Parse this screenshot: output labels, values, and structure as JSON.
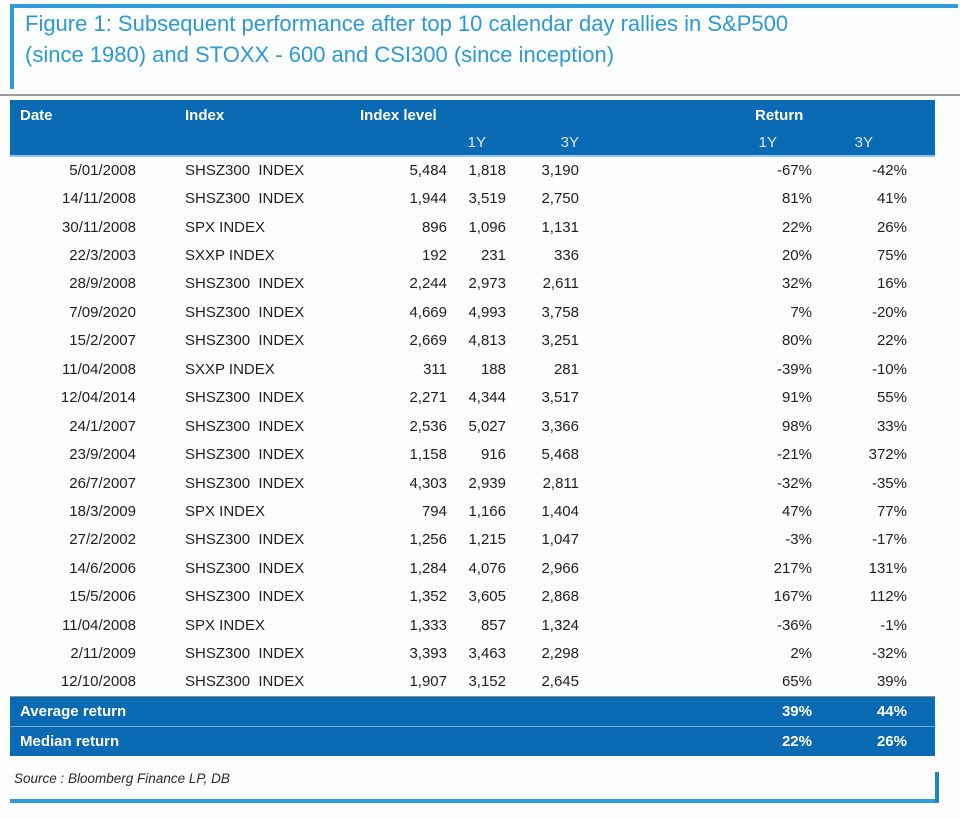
{
  "figure": {
    "title": "Figure 1: Subsequent performance after top 10 calendar day rallies in S&P500 (since 1980) and STOXX - 600 and CSI300 (since inception)"
  },
  "table": {
    "headers": {
      "date": "Date",
      "index": "Index",
      "index_level": "Index level",
      "return": "Return"
    },
    "subheaders": {
      "level_1y": "1Y",
      "level_3y": "3Y",
      "return_1y": "1Y",
      "return_3y": "3Y"
    },
    "rows": [
      {
        "date": "5/01/2008",
        "index": "SHSZ300  INDEX",
        "level": "5,484",
        "level_1y": "1,818",
        "level_3y": "3,190",
        "return_1y": "-67%",
        "return_3y": "-42%"
      },
      {
        "date": "14/11/2008",
        "index": "SHSZ300  INDEX",
        "level": "1,944",
        "level_1y": "3,519",
        "level_3y": "2,750",
        "return_1y": "81%",
        "return_3y": "41%"
      },
      {
        "date": "30/11/2008",
        "index": "SPX INDEX",
        "level": "896",
        "level_1y": "1,096",
        "level_3y": "1,131",
        "return_1y": "22%",
        "return_3y": "26%"
      },
      {
        "date": "22/3/2003",
        "index": "SXXP INDEX",
        "level": "192",
        "level_1y": "231",
        "level_3y": "336",
        "return_1y": "20%",
        "return_3y": "75%"
      },
      {
        "date": "28/9/2008",
        "index": "SHSZ300  INDEX",
        "level": "2,244",
        "level_1y": "2,973",
        "level_3y": "2,611",
        "return_1y": "32%",
        "return_3y": "16%"
      },
      {
        "date": "7/09/2020",
        "index": "SHSZ300  INDEX",
        "level": "4,669",
        "level_1y": "4,993",
        "level_3y": "3,758",
        "return_1y": "7%",
        "return_3y": "-20%"
      },
      {
        "date": "15/2/2007",
        "index": "SHSZ300  INDEX",
        "level": "2,669",
        "level_1y": "4,813",
        "level_3y": "3,251",
        "return_1y": "80%",
        "return_3y": "22%"
      },
      {
        "date": "11/04/2008",
        "index": "SXXP INDEX",
        "level": "311",
        "level_1y": "188",
        "level_3y": "281",
        "return_1y": "-39%",
        "return_3y": "-10%"
      },
      {
        "date": "12/04/2014",
        "index": "SHSZ300  INDEX",
        "level": "2,271",
        "level_1y": "4,344",
        "level_3y": "3,517",
        "return_1y": "91%",
        "return_3y": "55%"
      },
      {
        "date": "24/1/2007",
        "index": "SHSZ300  INDEX",
        "level": "2,536",
        "level_1y": "5,027",
        "level_3y": "3,366",
        "return_1y": "98%",
        "return_3y": "33%"
      },
      {
        "date": "23/9/2004",
        "index": "SHSZ300  INDEX",
        "level": "1,158",
        "level_1y": "916",
        "level_3y": "5,468",
        "return_1y": "-21%",
        "return_3y": "372%"
      },
      {
        "date": "26/7/2007",
        "index": "SHSZ300  INDEX",
        "level": "4,303",
        "level_1y": "2,939",
        "level_3y": "2,811",
        "return_1y": "-32%",
        "return_3y": "-35%"
      },
      {
        "date": "18/3/2009",
        "index": "SPX INDEX",
        "level": "794",
        "level_1y": "1,166",
        "level_3y": "1,404",
        "return_1y": "47%",
        "return_3y": "77%"
      },
      {
        "date": "27/2/2002",
        "index": "SHSZ300  INDEX",
        "level": "1,256",
        "level_1y": "1,215",
        "level_3y": "1,047",
        "return_1y": "-3%",
        "return_3y": "-17%"
      },
      {
        "date": "14/6/2006",
        "index": "SHSZ300  INDEX",
        "level": "1,284",
        "level_1y": "4,076",
        "level_3y": "2,966",
        "return_1y": "217%",
        "return_3y": "131%"
      },
      {
        "date": "15/5/2006",
        "index": "SHSZ300  INDEX",
        "level": "1,352",
        "level_1y": "3,605",
        "level_3y": "2,868",
        "return_1y": "167%",
        "return_3y": "112%"
      },
      {
        "date": "11/04/2008",
        "index": "SPX INDEX",
        "level": "1,333",
        "level_1y": "857",
        "level_3y": "1,324",
        "return_1y": "-36%",
        "return_3y": "-1%"
      },
      {
        "date": "2/11/2009",
        "index": "SHSZ300  INDEX",
        "level": "3,393",
        "level_1y": "3,463",
        "level_3y": "2,298",
        "return_1y": "2%",
        "return_3y": "-32%"
      },
      {
        "date": "12/10/2008",
        "index": "SHSZ300  INDEX",
        "level": "1,907",
        "level_1y": "3,152",
        "level_3y": "2,645",
        "return_1y": "65%",
        "return_3y": "39%"
      }
    ],
    "summary": [
      {
        "label": "Average return",
        "return_1y": "39%",
        "return_3y": "44%"
      },
      {
        "label": "Median return",
        "return_1y": "22%",
        "return_3y": "26%"
      }
    ]
  },
  "source": "Source : Bloomberg Finance LP, DB",
  "colors": {
    "header_bg": "#0a6ab3",
    "accent_light_blue": "#2d9cd9",
    "title_text": "#2b9ad5"
  }
}
